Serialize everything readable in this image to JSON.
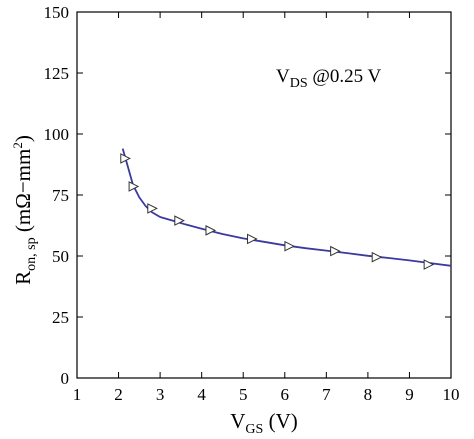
{
  "chart_data": {
    "type": "line",
    "title": "",
    "annotation": {
      "main": "V",
      "sub": "DS",
      "rest": " @0.25 V"
    },
    "xlabel": {
      "main": "V",
      "sub": "GS",
      "rest": " (V)"
    },
    "ylabel": {
      "main": "R",
      "sub": "on, sp",
      "rest": " (mΩ−mm",
      "sup": "2",
      "close": ")"
    },
    "xlim": [
      1,
      10
    ],
    "ylim": [
      0,
      150
    ],
    "xticks": [
      "1",
      "2",
      "3",
      "4",
      "5",
      "6",
      "7",
      "8",
      "9",
      "10"
    ],
    "yticks": [
      "0",
      "25",
      "50",
      "75",
      "100",
      "125",
      "150"
    ],
    "grid": false,
    "series": [
      {
        "color": "#3a3aa0",
        "x": [
          2.1,
          2.2,
          2.35,
          2.5,
          2.65,
          2.8,
          3.0,
          3.3,
          3.6,
          4.0,
          4.5,
          5.0,
          5.5,
          6.0,
          6.5,
          7.0,
          7.5,
          8.0,
          8.5,
          9.0,
          9.5,
          10.0
        ],
        "y": [
          94,
          88,
          79,
          74,
          70.5,
          68,
          66,
          64.5,
          63,
          61.2,
          59,
          57.2,
          55.8,
          54.4,
          53.2,
          52.2,
          51.2,
          50.1,
          49.2,
          48.2,
          47.1,
          46
        ]
      }
    ],
    "markers": {
      "shape": "triangle-right",
      "x": [
        2.15,
        2.35,
        2.8,
        3.45,
        4.2,
        5.2,
        6.1,
        7.2,
        8.2,
        9.45
      ],
      "y": [
        90,
        78.5,
        69.5,
        64.5,
        60.5,
        57,
        54,
        52,
        49.5,
        46.5
      ]
    }
  }
}
